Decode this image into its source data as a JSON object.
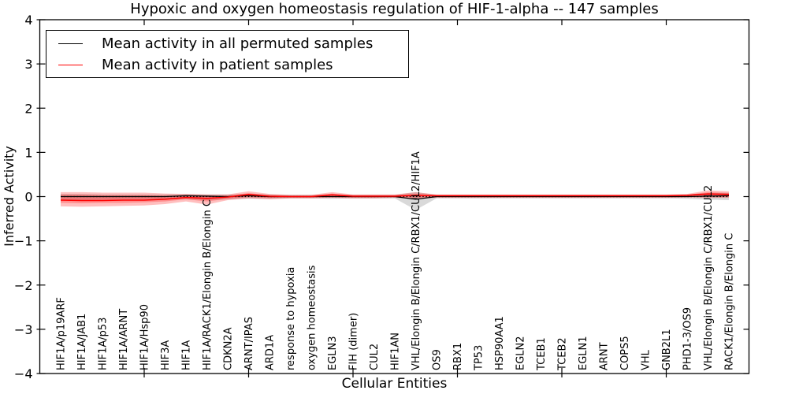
{
  "title": "Hypoxic and oxygen homeostasis regulation of HIF-1-alpha -- 147 samples",
  "legend": {
    "items": [
      {
        "label": "Mean activity in all permuted samples",
        "color": "#000000"
      },
      {
        "label": "Mean activity in patient samples",
        "color": "#ff0000"
      }
    ]
  },
  "chart_data": {
    "type": "line",
    "title": "Hypoxic and oxygen homeostasis regulation of HIF-1-alpha -- 147 samples",
    "xlabel": "Cellular Entities",
    "ylabel": "Inferred Activity",
    "ylim": [
      -4,
      4
    ],
    "grid": false,
    "legend_position": "upper left",
    "zero_line_dotted": true,
    "ytick_values": [
      4,
      3,
      2,
      1,
      0,
      -1,
      -2,
      -3,
      -4
    ],
    "ytick_labels": [
      "4",
      "3",
      "2",
      "1",
      "0",
      "−1",
      "−2",
      "−3",
      "−4"
    ],
    "xtick_values": [
      5,
      10,
      15,
      20,
      25,
      30
    ],
    "categories": [
      "HIF1A/p19ARF",
      "HIF1A/JAB1",
      "HIF1A/p53",
      "HIF1A/ARNT",
      "HIF1A/Hsp90",
      "HIF3A",
      "HIF1A",
      "HIF1A/RACK1/Elongin B/Elongin C",
      "CDKN2A",
      "ARNT/IPAS",
      "ARD1A",
      "response to hypoxia",
      "oxygen homeostasis",
      "EGLN3",
      "FIH (dimer)",
      "CUL2",
      "HIF1AN",
      "VHL/Elongin B/Elongin C/RBX1/CUL2/HIF1A",
      "OS9",
      "RBX1",
      "TP53",
      "HSP90AA1",
      "EGLN2",
      "TCEB1",
      "TCEB2",
      "EGLN1",
      "ARNT",
      "COPS5",
      "VHL",
      "GNB2L1",
      "PHD1-3/OS9",
      "VHL/Elongin B/Elongin C/RBX1/CUL2",
      "RACK1/Elongin B/Elongin C"
    ],
    "series": [
      {
        "name": "Mean activity in all permuted samples",
        "color": "#000000",
        "band_color": "#000000",
        "band_opacity": 0.15,
        "values": [
          0,
          0,
          0,
          0,
          0,
          0,
          0.02,
          0.01,
          0,
          0.02,
          0,
          0,
          0,
          0,
          0,
          0,
          0,
          -0.06,
          0,
          0,
          0,
          0,
          0,
          0,
          0,
          0,
          0,
          0,
          0,
          0,
          0,
          0.01,
          0.02
        ],
        "band_hi": [
          0.06,
          0.06,
          0.05,
          0.05,
          0.05,
          0.05,
          0.06,
          0.05,
          0.05,
          0.06,
          0.05,
          0.04,
          0.04,
          0.05,
          0.04,
          0.04,
          0.04,
          0.1,
          0.04,
          0.04,
          0.04,
          0.04,
          0.04,
          0.04,
          0.04,
          0.04,
          0.04,
          0.04,
          0.04,
          0.04,
          0.05,
          0.08,
          0.09
        ],
        "band_lo": [
          -0.08,
          -0.08,
          -0.07,
          -0.06,
          -0.06,
          -0.06,
          -0.06,
          -0.08,
          -0.06,
          -0.05,
          -0.05,
          -0.04,
          -0.04,
          -0.05,
          -0.04,
          -0.04,
          -0.04,
          -0.3,
          -0.04,
          -0.04,
          -0.04,
          -0.04,
          -0.04,
          -0.04,
          -0.04,
          -0.04,
          -0.04,
          -0.04,
          -0.04,
          -0.04,
          -0.05,
          -0.07,
          -0.08
        ]
      },
      {
        "name": "Mean activity in patient samples",
        "color": "#ff0000",
        "band_color": "#ff0000",
        "band_opacity": 0.25,
        "values": [
          -0.08,
          -0.09,
          -0.09,
          -0.08,
          -0.08,
          -0.06,
          -0.02,
          -0.04,
          -0.01,
          0.05,
          0.01,
          0,
          0,
          0.04,
          0.01,
          0.01,
          0.01,
          0.03,
          0.02,
          0.02,
          0.02,
          0.02,
          0.02,
          0.02,
          0.02,
          0.02,
          0.02,
          0.02,
          0.02,
          0.02,
          0.03,
          0.06,
          0.05
        ],
        "band_hi": [
          0.1,
          0.1,
          0.09,
          0.09,
          0.09,
          0.07,
          0.06,
          0.05,
          0.05,
          0.12,
          0.06,
          0.04,
          0.04,
          0.1,
          0.05,
          0.05,
          0.05,
          0.1,
          0.05,
          0.05,
          0.05,
          0.05,
          0.05,
          0.05,
          0.05,
          0.05,
          0.05,
          0.05,
          0.05,
          0.05,
          0.06,
          0.14,
          0.12
        ],
        "band_lo": [
          -0.22,
          -0.23,
          -0.22,
          -0.21,
          -0.2,
          -0.17,
          -0.11,
          -0.18,
          -0.08,
          -0.04,
          -0.06,
          -0.04,
          -0.04,
          -0.03,
          -0.04,
          -0.04,
          -0.03,
          -0.04,
          -0.03,
          -0.03,
          -0.03,
          -0.03,
          -0.03,
          -0.03,
          -0.03,
          -0.03,
          -0.03,
          -0.03,
          -0.03,
          -0.03,
          -0.02,
          -0.03,
          -0.03
        ],
        "inner_hi": [
          0.04,
          0.04,
          0.03,
          0.03,
          0.03,
          0.02,
          0.02,
          0.01,
          0.02,
          0.08,
          0.03,
          0.02,
          0.02,
          0.07,
          0.03,
          0.03,
          0.03,
          0.06,
          0.03,
          0.03,
          0.03,
          0.03,
          0.03,
          0.03,
          0.03,
          0.03,
          0.03,
          0.03,
          0.03,
          0.03,
          0.04,
          0.1,
          0.08
        ],
        "inner_lo": [
          -0.14,
          -0.15,
          -0.14,
          -0.14,
          -0.13,
          -0.11,
          -0.06,
          -0.11,
          -0.05,
          -0.01,
          -0.03,
          -0.02,
          -0.02,
          -0.01,
          -0.02,
          -0.02,
          -0.01,
          -0.02,
          -0.01,
          -0.01,
          -0.01,
          -0.01,
          -0.01,
          -0.01,
          -0.01,
          -0.01,
          -0.01,
          -0.01,
          -0.01,
          -0.01,
          -0.01,
          0,
          -0.01
        ]
      }
    ]
  }
}
